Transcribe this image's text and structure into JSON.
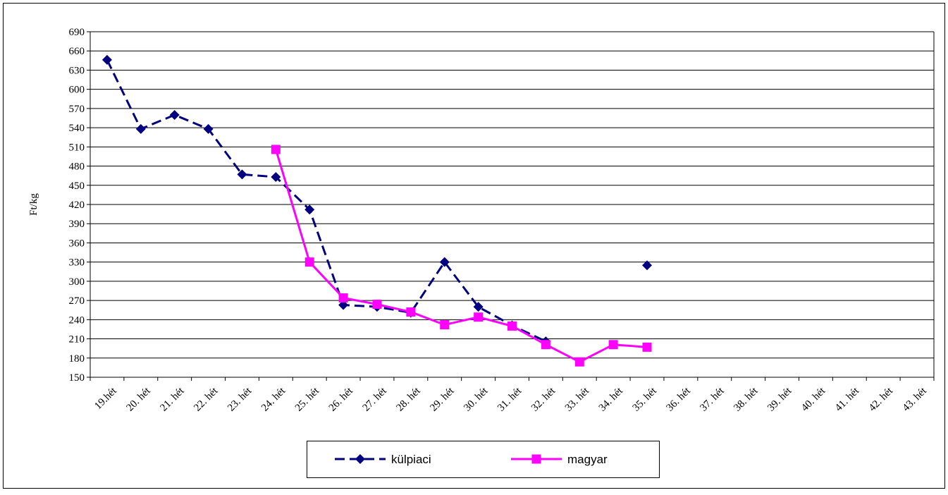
{
  "chart_data": {
    "type": "line",
    "y_label": "Ft/kg",
    "categories": [
      "19.hét",
      "20. hét",
      "21. hét",
      "22. hét",
      "23. hét",
      "24. hét",
      "25. hét",
      "26. hét",
      "27. hét",
      "28. hét",
      "29. hét",
      "30. hét",
      "31. hét",
      "32. hét",
      "33. hét",
      "34. hét",
      "35. hét",
      "36. hét",
      "37. hét",
      "38. hét",
      "39. hét",
      "40. hét",
      "41. hét",
      "42. hét",
      "43. hét"
    ],
    "series": [
      {
        "name": "külpiaci",
        "color": "#000080",
        "marker": "diamond",
        "dashed": true,
        "values": [
          646,
          538,
          560,
          538,
          467,
          463,
          412,
          263,
          260,
          251,
          330,
          260,
          231,
          206,
          null,
          null,
          325,
          null,
          null,
          null,
          null,
          null,
          null,
          null,
          null
        ]
      },
      {
        "name": "magyar",
        "color": "#ff00ff",
        "marker": "square",
        "dashed": false,
        "values": [
          null,
          null,
          null,
          null,
          null,
          506,
          330,
          274,
          264,
          252,
          232,
          244,
          230,
          201,
          174,
          201,
          197,
          null,
          null,
          null,
          null,
          null,
          null,
          null,
          null
        ]
      }
    ],
    "ylim": [
      150,
      690
    ],
    "yticks": [
      150,
      180,
      210,
      240,
      270,
      300,
      330,
      360,
      390,
      420,
      450,
      480,
      510,
      540,
      570,
      600,
      630,
      660,
      690
    ],
    "grid": true,
    "legend": "bottom"
  }
}
